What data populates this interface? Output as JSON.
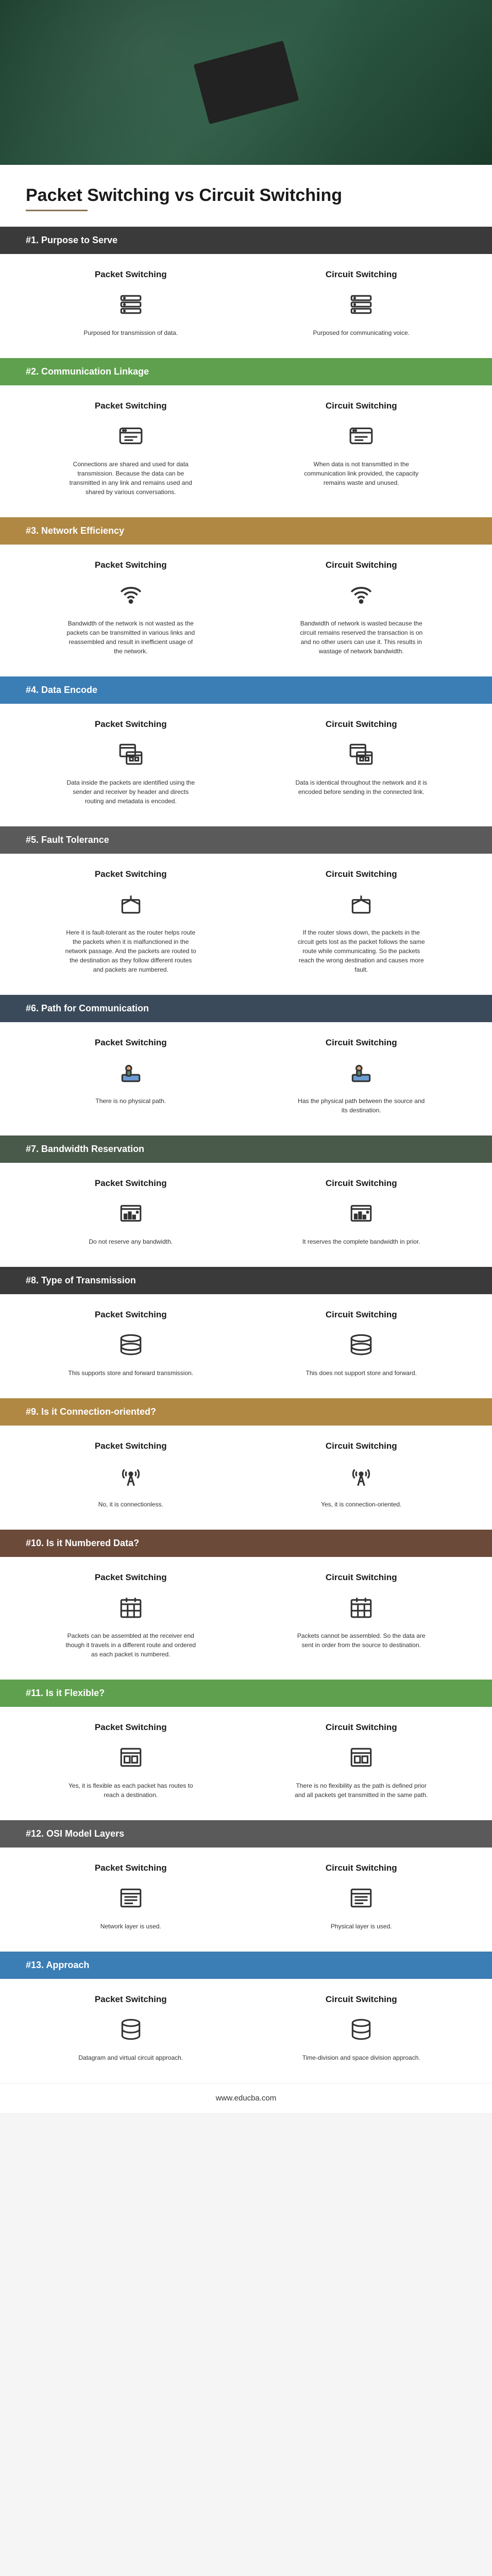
{
  "title": "Packet Switching vs Circuit Switching",
  "footer": "www.educba.com",
  "leftLabel": "Packet Switching",
  "rightLabel": "Circuit Switching",
  "sections": [
    {
      "title": "#1. Purpose to Serve",
      "bgColor": "#3a3a3a",
      "leftText": "Purposed for transmission of data.",
      "rightText": "Purposed for communicating voice.",
      "icon": "server"
    },
    {
      "title": "#2. Communication Linkage",
      "bgColor": "#5fa04e",
      "leftText": "Connections are shared and used for data transmission. Because the data can be transmitted in any link and remains used and shared by various conversations.",
      "rightText": "When data is not transmitted in the communication link provided, the capacity remains waste and unused.",
      "icon": "link"
    },
    {
      "title": "#3. Network Efficiency",
      "bgColor": "#b08844",
      "leftText": "Bandwidth of the network is not wasted as the packets can be transmitted in various links and reassembled and result in inefficient usage of the network.",
      "rightText": "Bandwidth of network is wasted because the circuit remains reserved the transaction is on and no other users can use it. This results in wastage of network bandwidth.",
      "icon": "wifi"
    },
    {
      "title": "#4. Data Encode",
      "bgColor": "#3b7db5",
      "leftText": "Data inside the packets are identified using the sender and receiver by header and directs routing and metadata is encoded.",
      "rightText": "Data is identical throughout the network and it is encoded before sending in the connected link.",
      "icon": "window"
    },
    {
      "title": "#5. Fault Tolerance",
      "bgColor": "#5a5a5a",
      "leftText": "Here it is fault-tolerant as the router helps route the packets when it is malfunctioned in the network passage. And the packets are routed to the destination as they follow different routes and packets are numbered.",
      "rightText": "If the router slows down, the packets in the circuit gets lost as the packet follows the same route while communicating. So the packets reach the wrong destination and causes more fault.",
      "icon": "box"
    },
    {
      "title": "#6. Path for Communication",
      "bgColor": "#3a4a5a",
      "leftText": "There is no physical path.",
      "rightText": "Has the physical path between the source and its destination.",
      "icon": "person"
    },
    {
      "title": "#7. Bandwidth Reservation",
      "bgColor": "#4a5a4a",
      "leftText": "Do not reserve any bandwidth.",
      "rightText": "It reserves the complete bandwidth in prior.",
      "icon": "chart"
    },
    {
      "title": "#8. Type of Transmission",
      "bgColor": "#3a3a3a",
      "leftText": "This supports store and forward transmission.",
      "rightText": "This does not support store and forward.",
      "icon": "disk"
    },
    {
      "title": "#9. Is it Connection-oriented?",
      "bgColor": "#b08844",
      "leftText": "No, it is connectionless.",
      "rightText": "Yes, it is connection-oriented.",
      "icon": "tower"
    },
    {
      "title": "#10. Is it Numbered Data?",
      "bgColor": "#6b4a3a",
      "leftText": "Packets can be assembled at the receiver end though it travels in a different route and ordered as each packet is numbered.",
      "rightText": "Packets cannot be assembled. So the data are sent in order from the source to destination.",
      "icon": "calendar"
    },
    {
      "title": "#11. Is it Flexible?",
      "bgColor": "#5fa04e",
      "leftText": "Yes, it is flexible as each packet has routes to reach a destination.",
      "rightText": "There is no flexibility as the path is defined prior and all packets get transmitted in the same path.",
      "icon": "layout"
    },
    {
      "title": "#12. OSI Model Layers",
      "bgColor": "#5a5a5a",
      "leftText": "Network layer is used.",
      "rightText": "Physical layer is used.",
      "icon": "list"
    },
    {
      "title": "#13. Approach",
      "bgColor": "#3b7db5",
      "leftText": "Datagram and virtual circuit approach.",
      "rightText": "Time-division and space division approach.",
      "icon": "cylinder"
    }
  ]
}
